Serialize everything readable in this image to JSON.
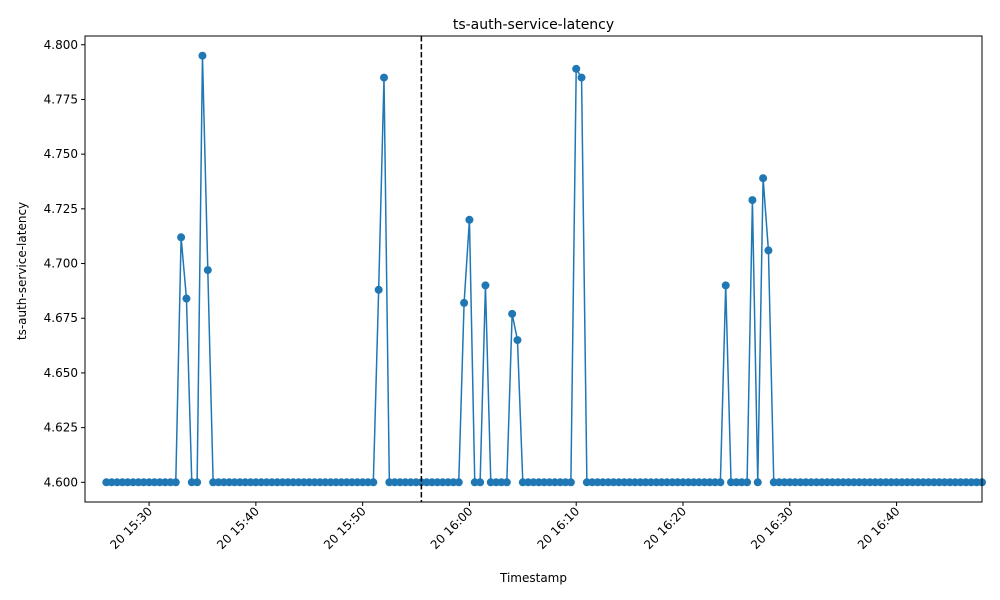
{
  "chart_data": {
    "type": "line",
    "title": "ts-auth-service-latency",
    "xlabel": "Timestamp",
    "ylabel": "ts-auth-service-latency",
    "x_start": "2024-01-20T15:26:00",
    "x_step_seconds": 30,
    "xlim": [
      "2024-01-20T15:24:00",
      "2024-01-20T16:48:00"
    ],
    "ylim": [
      4.591,
      4.804
    ],
    "yticks": [
      4.6,
      4.625,
      4.65,
      4.675,
      4.7,
      4.725,
      4.75,
      4.775,
      4.8
    ],
    "ytick_labels": [
      "4.600",
      "4.625",
      "4.650",
      "4.675",
      "4.700",
      "4.725",
      "4.750",
      "4.775",
      "4.800"
    ],
    "xticks": [
      "2024-01-20T15:30:00",
      "2024-01-20T15:40:00",
      "2024-01-20T15:50:00",
      "2024-01-20T16:00:00",
      "2024-01-20T16:10:00",
      "2024-01-20T16:20:00",
      "2024-01-20T16:30:00",
      "2024-01-20T16:40:00"
    ],
    "xtick_labels": [
      "20 15:30",
      "20 15:40",
      "20 15:50",
      "20 16:00",
      "20 16:10",
      "20 16:20",
      "20 16:30",
      "20 16:40"
    ],
    "vline": "2024-01-20T15:55:30",
    "series": [
      {
        "color": "#1f77b4",
        "values": [
          4.6,
          4.6,
          4.6,
          4.6,
          4.6,
          4.6,
          4.6,
          4.6,
          4.6,
          4.6,
          4.6,
          4.6,
          4.6,
          4.6,
          4.712,
          4.684,
          4.6,
          4.6,
          4.795,
          4.697,
          4.6,
          4.6,
          4.6,
          4.6,
          4.6,
          4.6,
          4.6,
          4.6,
          4.6,
          4.6,
          4.6,
          4.6,
          4.6,
          4.6,
          4.6,
          4.6,
          4.6,
          4.6,
          4.6,
          4.6,
          4.6,
          4.6,
          4.6,
          4.6,
          4.6,
          4.6,
          4.6,
          4.6,
          4.6,
          4.6,
          4.6,
          4.688,
          4.785,
          4.6,
          4.6,
          4.6,
          4.6,
          4.6,
          4.6,
          4.6,
          4.6,
          4.6,
          4.6,
          4.6,
          4.6,
          4.6,
          4.6,
          4.682,
          4.72,
          4.6,
          4.6,
          4.69,
          4.6,
          4.6,
          4.6,
          4.6,
          4.677,
          4.665,
          4.6,
          4.6,
          4.6,
          4.6,
          4.6,
          4.6,
          4.6,
          4.6,
          4.6,
          4.6,
          4.789,
          4.785,
          4.6,
          4.6,
          4.6,
          4.6,
          4.6,
          4.6,
          4.6,
          4.6,
          4.6,
          4.6,
          4.6,
          4.6,
          4.6,
          4.6,
          4.6,
          4.6,
          4.6,
          4.6,
          4.6,
          4.6,
          4.6,
          4.6,
          4.6,
          4.6,
          4.6,
          4.6,
          4.69,
          4.6,
          4.6,
          4.6,
          4.6,
          4.729,
          4.6,
          4.739,
          4.706,
          4.6,
          4.6,
          4.6,
          4.6,
          4.6,
          4.6,
          4.6,
          4.6,
          4.6,
          4.6,
          4.6,
          4.6,
          4.6,
          4.6,
          4.6,
          4.6,
          4.6,
          4.6,
          4.6,
          4.6,
          4.6,
          4.6,
          4.6,
          4.6,
          4.6,
          4.6,
          4.6,
          4.6,
          4.6,
          4.6,
          4.6,
          4.6,
          4.6,
          4.6,
          4.6,
          4.6,
          4.6,
          4.6,
          4.6,
          4.6
        ]
      }
    ],
    "grid": false,
    "legend": "none"
  }
}
